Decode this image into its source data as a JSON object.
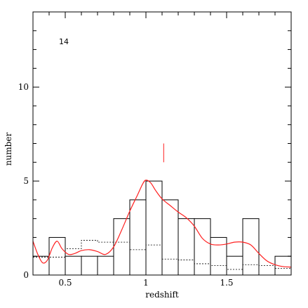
{
  "chart_data": {
    "type": "bar",
    "title": "",
    "xlabel": "redshift",
    "ylabel": "number",
    "xlim": [
      0.3,
      1.9
    ],
    "ylim": [
      0,
      14
    ],
    "xticks": [
      0.5,
      1,
      1.5
    ],
    "xtick_labels": [
      "0.5",
      "1",
      "1.5"
    ],
    "yticks": [
      0,
      5,
      10
    ],
    "ytick_labels": [
      "0",
      "5",
      "10"
    ],
    "annotation": "14",
    "grid": false,
    "series": [
      {
        "kind": "histogram",
        "color": "#000000",
        "bins": [
          {
            "x0": 0.3,
            "x1": 0.4,
            "value": 1
          },
          {
            "x0": 0.4,
            "x1": 0.5,
            "value": 2
          },
          {
            "x0": 0.5,
            "x1": 0.6,
            "value": 1
          },
          {
            "x0": 0.6,
            "x1": 0.7,
            "value": 1
          },
          {
            "x0": 0.7,
            "x1": 0.8,
            "value": 1
          },
          {
            "x0": 0.8,
            "x1": 0.9,
            "value": 3
          },
          {
            "x0": 0.9,
            "x1": 1.0,
            "value": 4
          },
          {
            "x0": 1.0,
            "x1": 1.1,
            "value": 5
          },
          {
            "x0": 1.1,
            "x1": 1.2,
            "value": 4
          },
          {
            "x0": 1.2,
            "x1": 1.3,
            "value": 3
          },
          {
            "x0": 1.3,
            "x1": 1.4,
            "value": 3
          },
          {
            "x0": 1.4,
            "x1": 1.5,
            "value": 2
          },
          {
            "x0": 1.5,
            "x1": 1.6,
            "value": 1
          },
          {
            "x0": 1.6,
            "x1": 1.7,
            "value": 3
          },
          {
            "x0": 1.7,
            "x1": 1.8,
            "value": 0
          },
          {
            "x0": 1.8,
            "x1": 1.9,
            "value": 1
          }
        ]
      },
      {
        "kind": "step-dashed",
        "color": "#000000",
        "bins": [
          {
            "x0": 0.3,
            "x1": 0.5,
            "value": 0.95
          },
          {
            "x0": 0.5,
            "x1": 0.6,
            "value": 1.4
          },
          {
            "x0": 0.6,
            "x1": 0.7,
            "value": 1.85
          },
          {
            "x0": 0.7,
            "x1": 0.8,
            "value": 1.75
          },
          {
            "x0": 0.8,
            "x1": 0.9,
            "value": 1.75
          },
          {
            "x0": 0.9,
            "x1": 1.0,
            "value": 1.35
          },
          {
            "x0": 1.0,
            "x1": 1.1,
            "value": 1.6
          },
          {
            "x0": 1.1,
            "x1": 1.2,
            "value": 0.85
          },
          {
            "x0": 1.2,
            "x1": 1.3,
            "value": 0.8
          },
          {
            "x0": 1.3,
            "x1": 1.4,
            "value": 0.6
          },
          {
            "x0": 1.4,
            "x1": 1.5,
            "value": 0.5
          },
          {
            "x0": 1.5,
            "x1": 1.6,
            "value": 0.3
          },
          {
            "x0": 1.6,
            "x1": 1.7,
            "value": 0.55
          },
          {
            "x0": 1.7,
            "x1": 1.8,
            "value": 0.5
          },
          {
            "x0": 1.8,
            "x1": 1.9,
            "value": 0.35
          }
        ]
      },
      {
        "kind": "smooth-line",
        "color": "#ff2020",
        "x": [
          0.3,
          0.33,
          0.36,
          0.39,
          0.42,
          0.45,
          0.48,
          0.52,
          0.56,
          0.6,
          0.65,
          0.7,
          0.75,
          0.8,
          0.85,
          0.9,
          0.95,
          0.98,
          1.0,
          1.03,
          1.06,
          1.1,
          1.15,
          1.2,
          1.25,
          1.3,
          1.35,
          1.4,
          1.45,
          1.5,
          1.55,
          1.6,
          1.65,
          1.7,
          1.75,
          1.8,
          1.85,
          1.9
        ],
        "y": [
          1.8,
          1.1,
          0.65,
          0.8,
          1.45,
          1.8,
          1.4,
          1.1,
          1.15,
          1.3,
          1.35,
          1.25,
          1.1,
          1.5,
          2.4,
          3.4,
          4.3,
          4.85,
          5.05,
          4.9,
          4.5,
          4.05,
          3.7,
          3.35,
          3.05,
          2.6,
          1.95,
          1.65,
          1.6,
          1.65,
          1.75,
          1.75,
          1.6,
          1.15,
          0.75,
          0.55,
          0.45,
          0.42
        ]
      },
      {
        "kind": "marker",
        "color": "#ff2020",
        "x": 1.11,
        "y": [
          6.0,
          7.0
        ]
      }
    ]
  }
}
